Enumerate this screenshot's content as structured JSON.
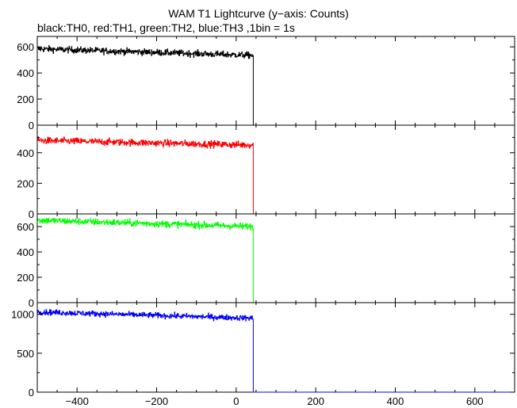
{
  "title": "WAM T1 Lightcurve (y−axis: Counts)",
  "subtitle": "black:TH0, red:TH1, green:TH2, blue:TH3 ,1bin = 1s",
  "chart_data": {
    "type": "line",
    "xlim": [
      -500,
      700
    ],
    "x_ticks": [
      -400,
      -200,
      0,
      200,
      400,
      600
    ],
    "x_tick_labels": [
      "−400",
      "−200",
      "0",
      "200",
      "400",
      "600"
    ],
    "bin_size_s": 1,
    "series": [
      {
        "name": "TH0",
        "color": "#000000",
        "ylim": [
          0,
          680
        ],
        "y_ticks": [
          0,
          200,
          400,
          600
        ],
        "y_tick_labels": [
          "0",
          "200",
          "400",
          "600"
        ],
        "active_start": -500,
        "active_end": 43,
        "level_start": 585,
        "level_end": 535,
        "noise": 24,
        "level_after": 0
      },
      {
        "name": "TH1",
        "color": "#ff0000",
        "ylim": [
          0,
          580
        ],
        "y_ticks": [
          0,
          200,
          400
        ],
        "y_tick_labels": [
          "0",
          "200",
          "400"
        ],
        "active_start": -500,
        "active_end": 43,
        "level_start": 480,
        "level_end": 450,
        "noise": 22,
        "level_after": 0
      },
      {
        "name": "TH2",
        "color": "#00ff00",
        "ylim": [
          0,
          700
        ],
        "y_ticks": [
          0,
          200,
          400,
          600
        ],
        "y_tick_labels": [
          "0",
          "200",
          "400",
          "600"
        ],
        "active_start": -500,
        "active_end": 43,
        "level_start": 650,
        "level_end": 600,
        "noise": 26,
        "level_after": 0
      },
      {
        "name": "TH3",
        "color": "#0000ff",
        "ylim": [
          0,
          1150
        ],
        "y_ticks": [
          0,
          500,
          1000
        ],
        "y_tick_labels": [
          "0",
          "500",
          "1000"
        ],
        "active_start": -500,
        "active_end": 43,
        "level_start": 1030,
        "level_end": 950,
        "noise": 35,
        "level_after": 0
      }
    ]
  }
}
